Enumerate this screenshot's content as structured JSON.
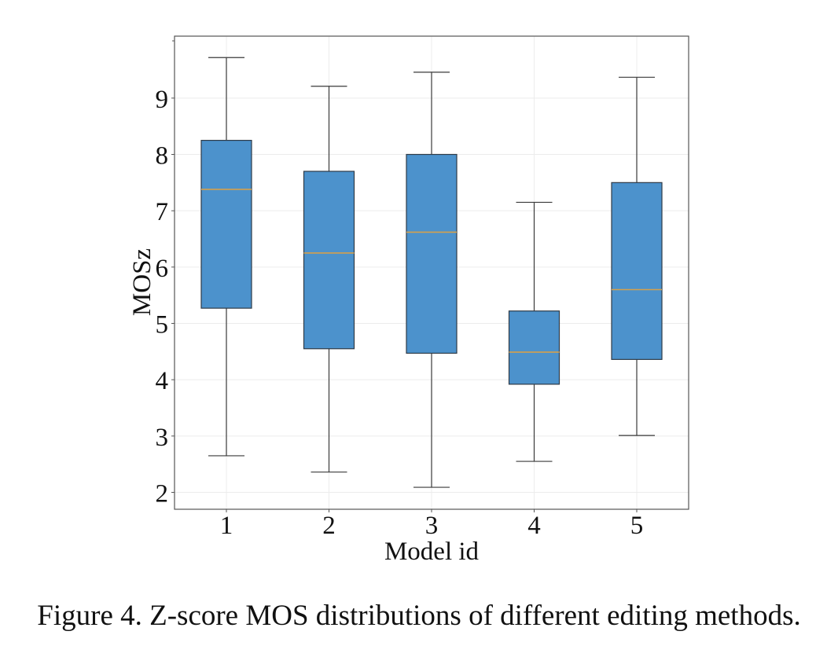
{
  "caption": "Figure 4. Z-score MOS distributions of different editing methods.",
  "chart_data": {
    "type": "box",
    "title": "",
    "xlabel": "Model id",
    "ylabel": "MOSz",
    "categories": [
      "1",
      "2",
      "3",
      "4",
      "5"
    ],
    "ylim": [
      1.7,
      10.1
    ],
    "yticks": [
      2,
      3,
      4,
      5,
      6,
      7,
      8,
      9
    ],
    "grid": true,
    "boxes": [
      {
        "category": "1",
        "whisker_low": 2.65,
        "q1": 5.27,
        "median": 7.38,
        "q3": 8.25,
        "whisker_high": 9.72
      },
      {
        "category": "2",
        "whisker_low": 2.36,
        "q1": 4.55,
        "median": 6.25,
        "q3": 7.7,
        "whisker_high": 9.21
      },
      {
        "category": "3",
        "whisker_low": 2.09,
        "q1": 4.47,
        "median": 6.62,
        "q3": 8.0,
        "whisker_high": 9.46
      },
      {
        "category": "4",
        "whisker_low": 2.55,
        "q1": 3.92,
        "median": 4.49,
        "q3": 5.22,
        "whisker_high": 7.15
      },
      {
        "category": "5",
        "whisker_low": 3.01,
        "q1": 4.36,
        "median": 5.6,
        "q3": 7.5,
        "whisker_high": 9.37
      }
    ],
    "colors": {
      "box_fill": "#4c92cc",
      "box_edge": "#2f3b47",
      "median": "#d4a04c",
      "whisker": "#3a3a3a",
      "grid": "#ececec",
      "frame": "#555555"
    }
  }
}
